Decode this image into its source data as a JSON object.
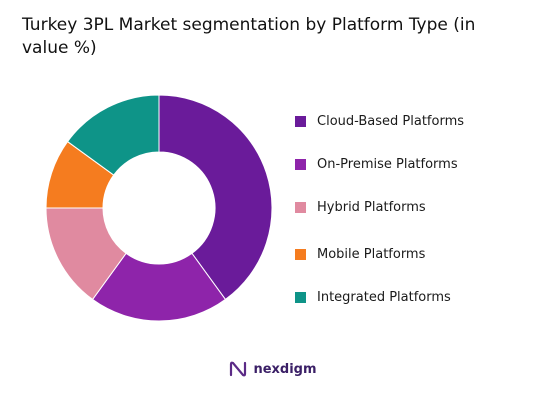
{
  "chart_data": {
    "type": "pie",
    "title": "Turkey 3PL Market segmentation by Platform Type (in value %)",
    "donut": true,
    "legend_position": "right",
    "categories": [
      "Cloud-Based Platforms",
      "On-Premise Platforms",
      "Hybrid Platforms",
      "Mobile Platforms",
      "Integrated Platforms"
    ],
    "values": [
      40,
      20,
      15,
      10,
      15
    ],
    "colors": [
      "#6a1b9a",
      "#8e24aa",
      "#e08aa0",
      "#f57c1f",
      "#0e9488"
    ]
  },
  "brand": {
    "name": "nexdigm",
    "icon": "nexdigm-logo-icon"
  }
}
